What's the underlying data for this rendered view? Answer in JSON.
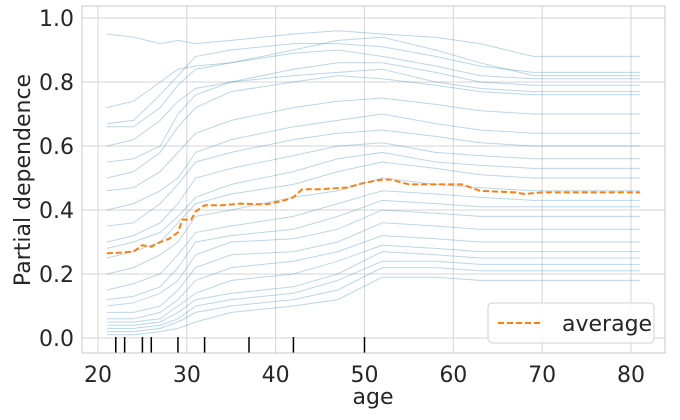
{
  "chart_data": {
    "type": "line",
    "title": "",
    "xlabel": "age",
    "ylabel": "Partial dependence",
    "xlim": [
      18,
      84
    ],
    "ylim": [
      -0.045,
      1.04
    ],
    "xticks": [
      20,
      30,
      40,
      50,
      60,
      70,
      80
    ],
    "xtick_labels": [
      "20",
      "30",
      "40",
      "50",
      "60",
      "70",
      "80"
    ],
    "yticks": [
      0.0,
      0.2,
      0.4,
      0.6,
      0.8,
      1.0
    ],
    "ytick_labels": [
      "0.0",
      "0.2",
      "0.4",
      "0.6",
      "0.8",
      "1.0"
    ],
    "grid": true,
    "legend": {
      "placement": "bottom-right",
      "entries": [
        "average"
      ]
    },
    "colors": {
      "ice": "#1f77b4",
      "average": "#ff7f0e",
      "grid": "#d5d5d5",
      "frame": "#c8c8c8"
    },
    "ice_x": [
      21,
      24,
      27,
      29,
      31,
      35,
      42,
      47,
      52,
      58,
      63,
      69,
      81
    ],
    "ice_lines": [
      [
        0.95,
        0.94,
        0.92,
        0.93,
        0.92,
        0.93,
        0.95,
        0.96,
        0.95,
        0.94,
        0.92,
        0.88,
        0.88
      ],
      [
        0.67,
        0.68,
        0.76,
        0.82,
        0.88,
        0.9,
        0.92,
        0.92,
        0.91,
        0.88,
        0.85,
        0.83,
        0.83
      ],
      [
        0.66,
        0.66,
        0.72,
        0.79,
        0.84,
        0.86,
        0.89,
        0.9,
        0.88,
        0.85,
        0.82,
        0.81,
        0.81
      ],
      [
        0.6,
        0.62,
        0.68,
        0.74,
        0.78,
        0.8,
        0.84,
        0.86,
        0.86,
        0.83,
        0.8,
        0.79,
        0.79
      ],
      [
        0.55,
        0.56,
        0.6,
        0.7,
        0.76,
        0.8,
        0.82,
        0.83,
        0.84,
        0.8,
        0.78,
        0.77,
        0.77
      ],
      [
        0.5,
        0.52,
        0.58,
        0.66,
        0.72,
        0.77,
        0.8,
        0.82,
        0.81,
        0.79,
        0.77,
        0.76,
        0.76
      ],
      [
        0.46,
        0.47,
        0.52,
        0.58,
        0.64,
        0.68,
        0.72,
        0.74,
        0.75,
        0.73,
        0.71,
        0.7,
        0.7
      ],
      [
        0.4,
        0.42,
        0.46,
        0.5,
        0.58,
        0.62,
        0.66,
        0.68,
        0.7,
        0.67,
        0.65,
        0.64,
        0.64
      ],
      [
        0.35,
        0.36,
        0.42,
        0.48,
        0.55,
        0.58,
        0.62,
        0.64,
        0.65,
        0.63,
        0.61,
        0.6,
        0.6
      ],
      [
        0.3,
        0.32,
        0.36,
        0.42,
        0.5,
        0.53,
        0.57,
        0.6,
        0.61,
        0.58,
        0.57,
        0.56,
        0.56
      ],
      [
        0.25,
        0.27,
        0.3,
        0.36,
        0.42,
        0.45,
        0.48,
        0.52,
        0.55,
        0.53,
        0.51,
        0.5,
        0.5
      ],
      [
        0.2,
        0.22,
        0.26,
        0.3,
        0.38,
        0.4,
        0.44,
        0.46,
        0.5,
        0.48,
        0.47,
        0.46,
        0.46
      ],
      [
        0.15,
        0.17,
        0.2,
        0.26,
        0.33,
        0.35,
        0.38,
        0.42,
        0.46,
        0.45,
        0.44,
        0.43,
        0.43
      ],
      [
        0.12,
        0.13,
        0.16,
        0.22,
        0.3,
        0.32,
        0.34,
        0.38,
        0.43,
        0.42,
        0.41,
        0.41,
        0.41
      ],
      [
        0.1,
        0.11,
        0.14,
        0.18,
        0.26,
        0.3,
        0.31,
        0.34,
        0.4,
        0.39,
        0.38,
        0.38,
        0.38
      ],
      [
        0.08,
        0.08,
        0.1,
        0.15,
        0.22,
        0.26,
        0.27,
        0.3,
        0.36,
        0.35,
        0.34,
        0.34,
        0.34
      ],
      [
        0.06,
        0.06,
        0.08,
        0.12,
        0.18,
        0.22,
        0.24,
        0.27,
        0.32,
        0.31,
        0.3,
        0.3,
        0.3
      ],
      [
        0.05,
        0.05,
        0.06,
        0.1,
        0.14,
        0.18,
        0.2,
        0.24,
        0.29,
        0.28,
        0.27,
        0.27,
        0.27
      ],
      [
        0.04,
        0.04,
        0.05,
        0.08,
        0.12,
        0.14,
        0.16,
        0.2,
        0.27,
        0.26,
        0.25,
        0.25,
        0.25
      ],
      [
        0.03,
        0.03,
        0.04,
        0.06,
        0.1,
        0.12,
        0.14,
        0.18,
        0.24,
        0.24,
        0.23,
        0.23,
        0.23
      ],
      [
        0.02,
        0.02,
        0.03,
        0.05,
        0.08,
        0.1,
        0.12,
        0.15,
        0.22,
        0.22,
        0.21,
        0.21,
        0.21
      ],
      [
        0.01,
        0.01,
        0.02,
        0.03,
        0.05,
        0.08,
        0.1,
        0.12,
        0.19,
        0.19,
        0.18,
        0.18,
        0.18
      ],
      [
        0.72,
        0.74,
        0.8,
        0.84,
        0.85,
        0.86,
        0.9,
        0.93,
        0.94,
        0.9,
        0.86,
        0.82,
        0.82
      ],
      [
        0.28,
        0.3,
        0.33,
        0.38,
        0.44,
        0.48,
        0.52,
        0.56,
        0.58,
        0.55,
        0.54,
        0.53,
        0.53
      ]
    ],
    "average": {
      "name": "average",
      "x": [
        21,
        22,
        24,
        25,
        26,
        27,
        28,
        29,
        29.5,
        30.5,
        31,
        32,
        34,
        36,
        38,
        39,
        41,
        42,
        43,
        45,
        48,
        50,
        52,
        53,
        55,
        58,
        61,
        63,
        67,
        68,
        70,
        81
      ],
      "y": [
        0.265,
        0.266,
        0.27,
        0.29,
        0.285,
        0.3,
        0.31,
        0.33,
        0.37,
        0.37,
        0.395,
        0.415,
        0.415,
        0.42,
        0.418,
        0.418,
        0.43,
        0.44,
        0.465,
        0.465,
        0.47,
        0.485,
        0.495,
        0.495,
        0.48,
        0.48,
        0.48,
        0.46,
        0.455,
        0.45,
        0.455,
        0.455
      ]
    },
    "rug_x": [
      22,
      23,
      25,
      26,
      29,
      32,
      37,
      42,
      50
    ]
  }
}
